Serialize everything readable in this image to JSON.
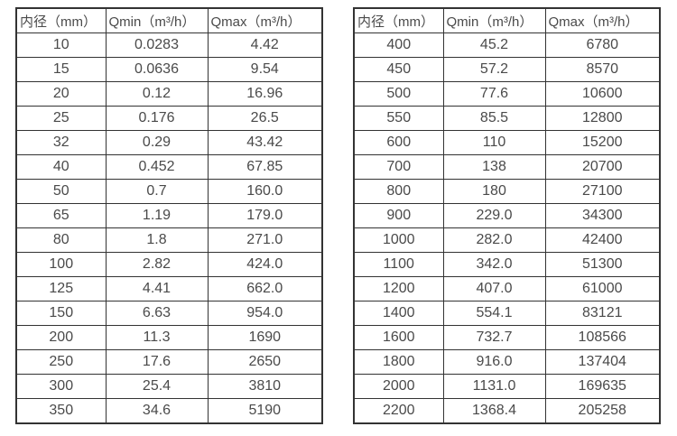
{
  "tables": [
    {
      "name": "flow-range-table-small-diameters",
      "headers": [
        "内径（mm）",
        "Qmin（m³/h）",
        "Qmax（m³/h）"
      ],
      "rows": [
        [
          "10",
          "0.0283",
          "4.42"
        ],
        [
          "15",
          "0.0636",
          "9.54"
        ],
        [
          "20",
          "0.12",
          "16.96"
        ],
        [
          "25",
          "0.176",
          "26.5"
        ],
        [
          "32",
          "0.29",
          "43.42"
        ],
        [
          "40",
          "0.452",
          "67.85"
        ],
        [
          "50",
          "0.7",
          "160.0"
        ],
        [
          "65",
          "1.19",
          "179.0"
        ],
        [
          "80",
          "1.8",
          "271.0"
        ],
        [
          "100",
          "2.82",
          "424.0"
        ],
        [
          "125",
          "4.41",
          "662.0"
        ],
        [
          "150",
          "6.63",
          "954.0"
        ],
        [
          "200",
          "11.3",
          "1690"
        ],
        [
          "250",
          "17.6",
          "2650"
        ],
        [
          "300",
          "25.4",
          "3810"
        ],
        [
          "350",
          "34.6",
          "5190"
        ]
      ]
    },
    {
      "name": "flow-range-table-large-diameters",
      "headers": [
        "内径（mm）",
        "Qmin（m³/h）",
        "Qmax（m³/h）"
      ],
      "rows": [
        [
          "400",
          "45.2",
          "6780"
        ],
        [
          "450",
          "57.2",
          "8570"
        ],
        [
          "500",
          "77.6",
          "10600"
        ],
        [
          "550",
          "85.5",
          "12800"
        ],
        [
          "600",
          "110",
          "15200"
        ],
        [
          "700",
          "138",
          "20700"
        ],
        [
          "800",
          "180",
          "27100"
        ],
        [
          "900",
          "229.0",
          "34300"
        ],
        [
          "1000",
          "282.0",
          "42400"
        ],
        [
          "1100",
          "342.0",
          "51300"
        ],
        [
          "1200",
          "407.0",
          "61000"
        ],
        [
          "1400",
          "554.1",
          "83121"
        ],
        [
          "1600",
          "732.7",
          "108566"
        ],
        [
          "1800",
          "916.0",
          "137404"
        ],
        [
          "2000",
          "1131.0",
          "169635"
        ],
        [
          "2200",
          "1368.4",
          "205258"
        ]
      ]
    }
  ],
  "colors": {
    "border": "#333333",
    "text": "#4a4a4a",
    "background": "#ffffff"
  }
}
